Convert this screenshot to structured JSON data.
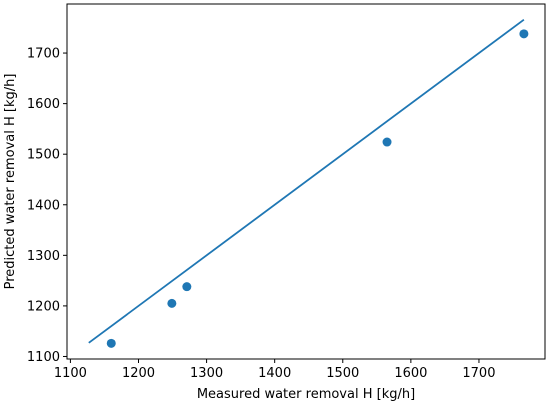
{
  "chart_data": {
    "type": "scatter",
    "xlabel": "Measured water removal H [kg/h]",
    "ylabel": "Predicted water removal H [kg/h]",
    "xlim": [
      1095,
      1797
    ],
    "ylim": [
      1095,
      1797
    ],
    "xticks": [
      1100,
      1200,
      1300,
      1400,
      1500,
      1600,
      1700
    ],
    "yticks": [
      1100,
      1200,
      1300,
      1400,
      1500,
      1600,
      1700
    ],
    "grid": false,
    "series": [
      {
        "type": "scatter",
        "x": [
          1160,
          1249,
          1271,
          1565,
          1766
        ],
        "y": [
          1126,
          1205,
          1238,
          1524,
          1738
        ]
      },
      {
        "type": "line",
        "x": [
          1127,
          1766
        ],
        "y": [
          1127,
          1766
        ]
      }
    ],
    "colors": {
      "marker": "#1f77b4",
      "line": "#1f77b4"
    }
  }
}
